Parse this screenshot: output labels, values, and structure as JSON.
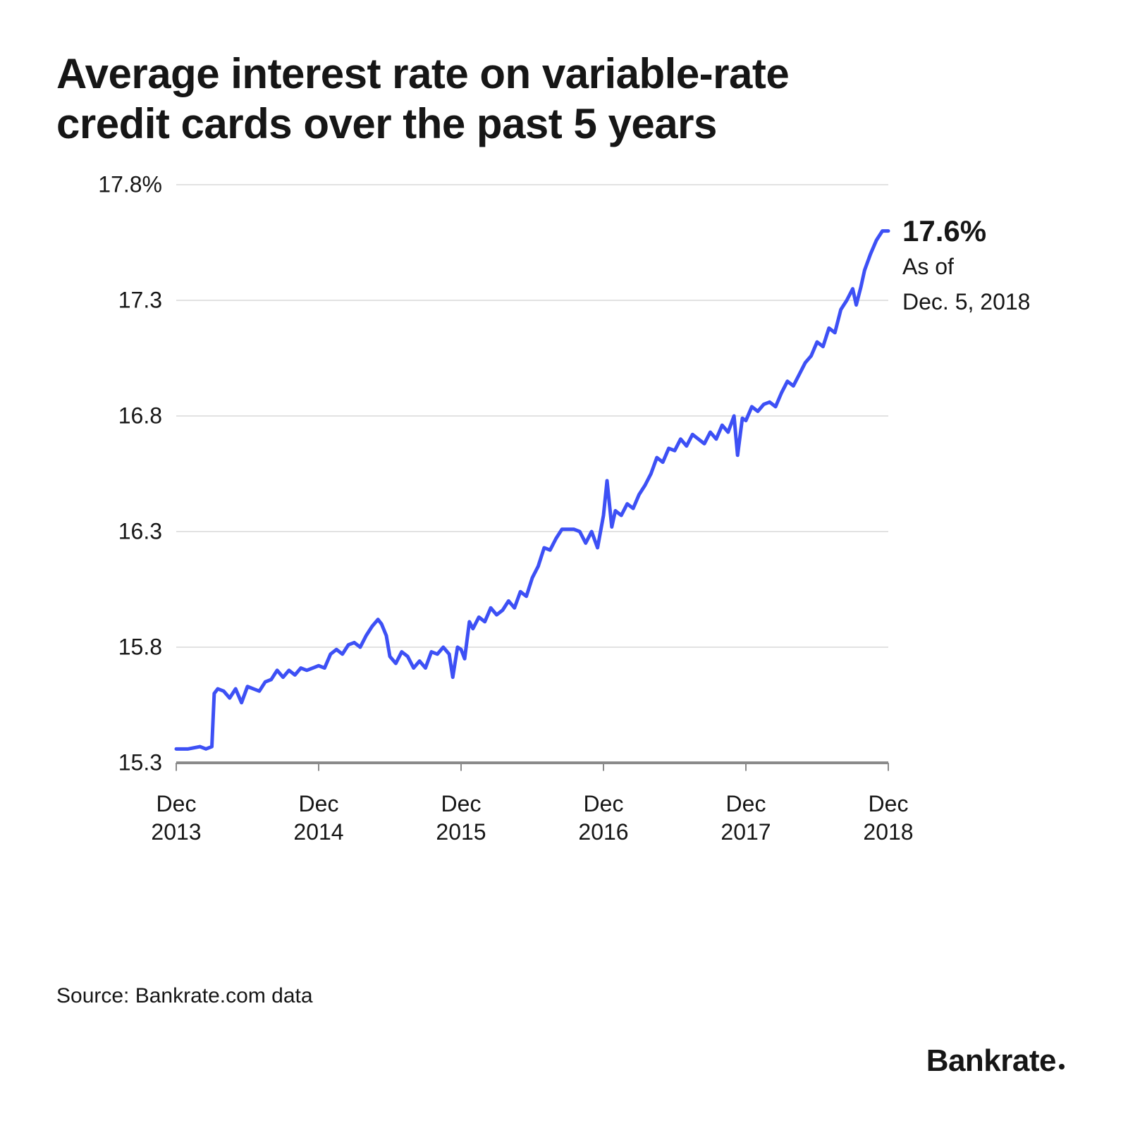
{
  "title": "Average interest rate on variable-rate credit cards over the past 5 years",
  "source": "Source: Bankrate.com data",
  "brand": "Bankrate",
  "chart": {
    "type": "line",
    "background_color": "#ffffff",
    "grid_color": "#d9d9d9",
    "axis_color": "#8a8a8a",
    "text_color": "#161616",
    "line_color": "#3d50f5",
    "line_width": 5,
    "title_fontsize": 60,
    "label_fontsize": 32,
    "callout_value_fontsize": 42,
    "x": {
      "min": 0,
      "max": 60,
      "ticks": [
        0,
        12,
        24,
        36,
        48,
        60
      ],
      "tick_labels": [
        "Dec\n2013",
        "Dec\n2014",
        "Dec\n2015",
        "Dec\n2016",
        "Dec\n2017",
        "Dec\n2018"
      ]
    },
    "y": {
      "min": 15.3,
      "max": 17.8,
      "ticks": [
        15.3,
        15.8,
        16.3,
        16.8,
        17.3,
        17.8
      ],
      "tick_labels": [
        "15.3",
        "15.8",
        "16.3",
        "16.8",
        "17.3",
        "17.8%"
      ]
    },
    "series": [
      [
        0,
        15.36
      ],
      [
        1,
        15.36
      ],
      [
        2,
        15.37
      ],
      [
        2.5,
        15.36
      ],
      [
        3,
        15.37
      ],
      [
        3.2,
        15.6
      ],
      [
        3.5,
        15.62
      ],
      [
        4,
        15.61
      ],
      [
        4.5,
        15.58
      ],
      [
        5,
        15.62
      ],
      [
        5.5,
        15.56
      ],
      [
        6,
        15.63
      ],
      [
        6.5,
        15.62
      ],
      [
        7,
        15.61
      ],
      [
        7.5,
        15.65
      ],
      [
        8,
        15.66
      ],
      [
        8.5,
        15.7
      ],
      [
        9,
        15.67
      ],
      [
        9.5,
        15.7
      ],
      [
        10,
        15.68
      ],
      [
        10.5,
        15.71
      ],
      [
        11,
        15.7
      ],
      [
        11.5,
        15.71
      ],
      [
        12,
        15.72
      ],
      [
        12.5,
        15.71
      ],
      [
        13,
        15.77
      ],
      [
        13.5,
        15.79
      ],
      [
        14,
        15.77
      ],
      [
        14.5,
        15.81
      ],
      [
        15,
        15.82
      ],
      [
        15.5,
        15.8
      ],
      [
        16,
        15.85
      ],
      [
        16.5,
        15.89
      ],
      [
        17,
        15.92
      ],
      [
        17.3,
        15.9
      ],
      [
        17.7,
        15.85
      ],
      [
        18,
        15.76
      ],
      [
        18.5,
        15.73
      ],
      [
        19,
        15.78
      ],
      [
        19.5,
        15.76
      ],
      [
        20,
        15.71
      ],
      [
        20.5,
        15.74
      ],
      [
        21,
        15.71
      ],
      [
        21.5,
        15.78
      ],
      [
        22,
        15.77
      ],
      [
        22.5,
        15.8
      ],
      [
        23,
        15.77
      ],
      [
        23.3,
        15.67
      ],
      [
        23.7,
        15.8
      ],
      [
        24,
        15.79
      ],
      [
        24.3,
        15.75
      ],
      [
        24.7,
        15.91
      ],
      [
        25,
        15.88
      ],
      [
        25.5,
        15.93
      ],
      [
        26,
        15.91
      ],
      [
        26.5,
        15.97
      ],
      [
        27,
        15.94
      ],
      [
        27.5,
        15.96
      ],
      [
        28,
        16.0
      ],
      [
        28.5,
        15.97
      ],
      [
        29,
        16.04
      ],
      [
        29.5,
        16.02
      ],
      [
        30,
        16.1
      ],
      [
        30.5,
        16.15
      ],
      [
        31,
        16.23
      ],
      [
        31.5,
        16.22
      ],
      [
        32,
        16.27
      ],
      [
        32.5,
        16.31
      ],
      [
        33,
        16.31
      ],
      [
        33.5,
        16.31
      ],
      [
        34,
        16.3
      ],
      [
        34.5,
        16.25
      ],
      [
        35,
        16.3
      ],
      [
        35.5,
        16.23
      ],
      [
        36,
        16.37
      ],
      [
        36.3,
        16.52
      ],
      [
        36.7,
        16.32
      ],
      [
        37,
        16.39
      ],
      [
        37.5,
        16.37
      ],
      [
        38,
        16.42
      ],
      [
        38.5,
        16.4
      ],
      [
        39,
        16.46
      ],
      [
        39.5,
        16.5
      ],
      [
        40,
        16.55
      ],
      [
        40.5,
        16.62
      ],
      [
        41,
        16.6
      ],
      [
        41.5,
        16.66
      ],
      [
        42,
        16.65
      ],
      [
        42.5,
        16.7
      ],
      [
        43,
        16.67
      ],
      [
        43.5,
        16.72
      ],
      [
        44,
        16.7
      ],
      [
        44.5,
        16.68
      ],
      [
        45,
        16.73
      ],
      [
        45.5,
        16.7
      ],
      [
        46,
        16.76
      ],
      [
        46.5,
        16.73
      ],
      [
        47,
        16.8
      ],
      [
        47.3,
        16.63
      ],
      [
        47.7,
        16.79
      ],
      [
        48,
        16.78
      ],
      [
        48.5,
        16.84
      ],
      [
        49,
        16.82
      ],
      [
        49.5,
        16.85
      ],
      [
        50,
        16.86
      ],
      [
        50.5,
        16.84
      ],
      [
        51,
        16.9
      ],
      [
        51.5,
        16.95
      ],
      [
        52,
        16.93
      ],
      [
        52.5,
        16.98
      ],
      [
        53,
        17.03
      ],
      [
        53.5,
        17.06
      ],
      [
        54,
        17.12
      ],
      [
        54.5,
        17.1
      ],
      [
        55,
        17.18
      ],
      [
        55.5,
        17.16
      ],
      [
        56,
        17.26
      ],
      [
        56.5,
        17.3
      ],
      [
        57,
        17.35
      ],
      [
        57.3,
        17.28
      ],
      [
        57.7,
        17.36
      ],
      [
        58,
        17.43
      ],
      [
        58.5,
        17.5
      ],
      [
        59,
        17.56
      ],
      [
        59.5,
        17.6
      ],
      [
        60,
        17.6
      ]
    ],
    "callout": {
      "value": "17.6%",
      "line1": "As of",
      "line2": "Dec. 5, 2018",
      "at_x": 60,
      "at_y": 17.6
    }
  }
}
